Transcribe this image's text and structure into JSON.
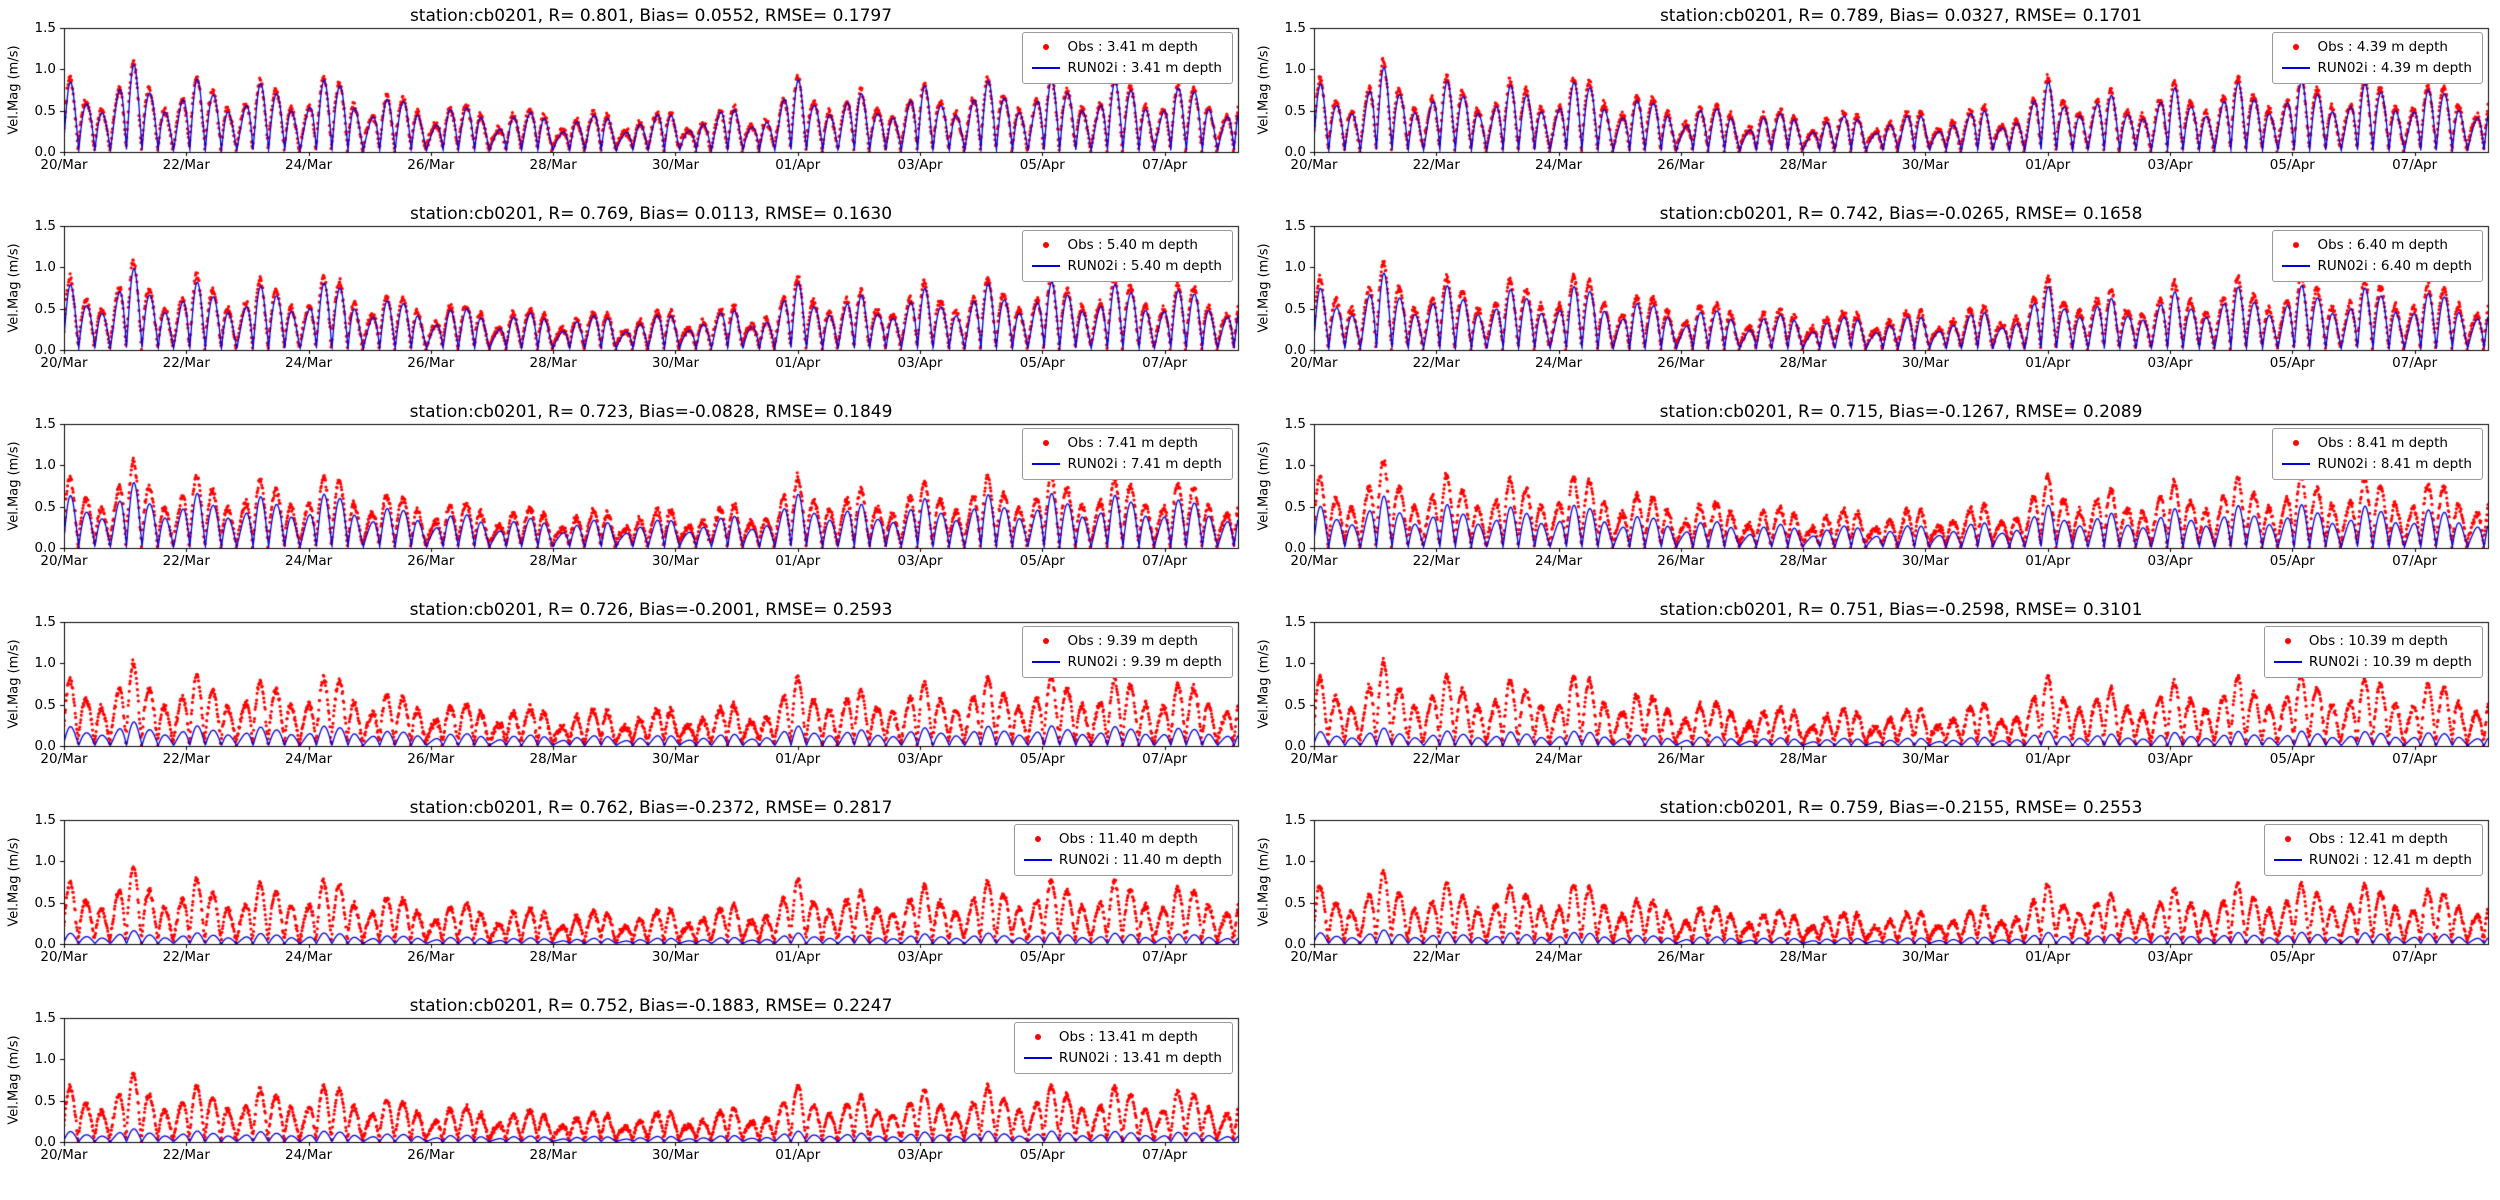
{
  "figure": {
    "station": "cb0201",
    "background": "#ffffff",
    "obs_color": "#ff0000",
    "model_color": "#0000dd",
    "axis_color": "#000000"
  },
  "axes": {
    "ylabel": "Vel.Mag (m/s)",
    "ylim": [
      0.0,
      1.5
    ],
    "yticks": [
      "0.0",
      "0.5",
      "1.0",
      "1.5"
    ],
    "ytick_values": [
      0.0,
      0.5,
      1.0,
      1.5
    ],
    "xticks": [
      "20/Mar",
      "22/Mar",
      "24/Mar",
      "26/Mar",
      "28/Mar",
      "30/Mar",
      "01/Apr",
      "03/Apr",
      "05/Apr",
      "07/Apr"
    ],
    "xtick_interval_days": 2,
    "x_range_days": 19.2,
    "x_range_hours": 460.8,
    "grid": false,
    "legend_position": "upper right"
  },
  "chart_data": [
    {
      "type": "line",
      "title": "station:cb0201, R= 0.801, Bias= 0.0552, RMSE= 0.1797",
      "station": "cb0201",
      "R": 0.801,
      "Bias": 0.0552,
      "RMSE": 0.1797,
      "depth_m": 3.41,
      "legend": [
        "Obs : 3.41 m depth",
        "RUN02i : 3.41 m depth"
      ],
      "series": [
        {
          "name": "Obs : 3.41 m depth",
          "style": "scatter",
          "marker": "dot",
          "color": "#ff0000"
        },
        {
          "name": "RUN02i : 3.41 m depth",
          "style": "line",
          "color": "#0000dd"
        }
      ],
      "signal": "semidiurnal tidal velocity magnitude, peaks 0.3-1.3 m/s, troughs near 0",
      "obs_amp": 1.0,
      "model_ratio": 1.0,
      "seed": 1
    },
    {
      "type": "line",
      "title": "station:cb0201, R= 0.789, Bias= 0.0327, RMSE= 0.1701",
      "station": "cb0201",
      "R": 0.789,
      "Bias": 0.0327,
      "RMSE": 0.1701,
      "depth_m": 4.39,
      "legend": [
        "Obs : 4.39 m depth",
        "RUN02i : 4.39 m depth"
      ],
      "series": [
        {
          "name": "Obs : 4.39 m depth",
          "style": "scatter",
          "marker": "dot",
          "color": "#ff0000"
        },
        {
          "name": "RUN02i : 4.39 m depth",
          "style": "line",
          "color": "#0000dd"
        }
      ],
      "signal": "semidiurnal tidal velocity magnitude, model tracks obs closely",
      "obs_amp": 1.0,
      "model_ratio": 0.97,
      "seed": 2
    },
    {
      "type": "line",
      "title": "station:cb0201, R= 0.769, Bias= 0.0113, RMSE= 0.1630",
      "station": "cb0201",
      "R": 0.769,
      "Bias": 0.0113,
      "RMSE": 0.163,
      "depth_m": 5.4,
      "legend": [
        "Obs : 5.40 m depth",
        "RUN02i : 5.40 m depth"
      ],
      "series": [
        {
          "name": "Obs : 5.40 m depth",
          "style": "scatter",
          "marker": "dot",
          "color": "#ff0000"
        },
        {
          "name": "RUN02i : 5.40 m depth",
          "style": "line",
          "color": "#0000dd"
        }
      ],
      "signal": "semidiurnal tidal velocity magnitude, model tracks obs closely",
      "obs_amp": 0.98,
      "model_ratio": 0.95,
      "seed": 3
    },
    {
      "type": "line",
      "title": "station:cb0201, R= 0.742, Bias=-0.0265, RMSE= 0.1658",
      "station": "cb0201",
      "R": 0.742,
      "Bias": -0.0265,
      "RMSE": 0.1658,
      "depth_m": 6.4,
      "legend": [
        "Obs : 6.40 m depth",
        "RUN02i : 6.40 m depth"
      ],
      "series": [
        {
          "name": "Obs : 6.40 m depth",
          "style": "scatter",
          "marker": "dot",
          "color": "#ff0000"
        },
        {
          "name": "RUN02i : 6.40 m depth",
          "style": "line",
          "color": "#0000dd"
        }
      ],
      "signal": "semidiurnal tidal velocity magnitude, model slightly below obs",
      "obs_amp": 0.98,
      "model_ratio": 0.9,
      "seed": 4
    },
    {
      "type": "line",
      "title": "station:cb0201, R= 0.723, Bias=-0.0828, RMSE= 0.1849",
      "station": "cb0201",
      "R": 0.723,
      "Bias": -0.0828,
      "RMSE": 0.1849,
      "depth_m": 7.41,
      "legend": [
        "Obs : 7.41 m depth",
        "RUN02i : 7.41 m depth"
      ],
      "series": [
        {
          "name": "Obs : 7.41 m depth",
          "style": "scatter",
          "marker": "dot",
          "color": "#ff0000"
        },
        {
          "name": "RUN02i : 7.41 m depth",
          "style": "line",
          "color": "#0000dd"
        }
      ],
      "signal": "semidiurnal tidal velocity magnitude, model underestimates peaks",
      "obs_amp": 0.96,
      "model_ratio": 0.78,
      "seed": 5
    },
    {
      "type": "line",
      "title": "station:cb0201, R= 0.715, Bias=-0.1267, RMSE= 0.2089",
      "station": "cb0201",
      "R": 0.715,
      "Bias": -0.1267,
      "RMSE": 0.2089,
      "depth_m": 8.41,
      "legend": [
        "Obs : 8.41 m depth",
        "RUN02i : 8.41 m depth"
      ],
      "series": [
        {
          "name": "Obs : 8.41 m depth",
          "style": "scatter",
          "marker": "dot",
          "color": "#ff0000"
        },
        {
          "name": "RUN02i : 8.41 m depth",
          "style": "line",
          "color": "#0000dd"
        }
      ],
      "signal": "semidiurnal tidal velocity magnitude, model underestimates peaks",
      "obs_amp": 0.96,
      "model_ratio": 0.62,
      "seed": 6
    },
    {
      "type": "line",
      "title": "station:cb0201, R= 0.726, Bias=-0.2001, RMSE= 0.2593",
      "station": "cb0201",
      "R": 0.726,
      "Bias": -0.2001,
      "RMSE": 0.2593,
      "depth_m": 9.39,
      "legend": [
        "Obs : 9.39 m depth",
        "RUN02i : 9.39 m depth"
      ],
      "series": [
        {
          "name": "Obs : 9.39 m depth",
          "style": "scatter",
          "marker": "dot",
          "color": "#ff0000"
        },
        {
          "name": "RUN02i : 9.39 m depth",
          "style": "line",
          "color": "#0000dd"
        }
      ],
      "signal": "obs peaks ~0.8-1.2 m/s, model strongly damped, peaks ~0.2-0.35 m/s",
      "obs_amp": 0.92,
      "model_ratio": 0.3,
      "seed": 7
    },
    {
      "type": "line",
      "title": "station:cb0201, R= 0.751, Bias=-0.2598, RMSE= 0.3101",
      "station": "cb0201",
      "R": 0.751,
      "Bias": -0.2598,
      "RMSE": 0.3101,
      "depth_m": 10.39,
      "legend": [
        "Obs : 10.39 m depth",
        "RUN02i : 10.39 m depth"
      ],
      "series": [
        {
          "name": "Obs : 10.39 m depth",
          "style": "scatter",
          "marker": "dot",
          "color": "#ff0000"
        },
        {
          "name": "RUN02i : 10.39 m depth",
          "style": "line",
          "color": "#0000dd"
        }
      ],
      "signal": "obs peaks ~0.8-1.1 m/s, model strongly damped, peaks ~0.15-0.3 m/s",
      "obs_amp": 0.93,
      "model_ratio": 0.22,
      "seed": 8
    },
    {
      "type": "line",
      "title": "station:cb0201, R= 0.762, Bias=-0.2372, RMSE= 0.2817",
      "station": "cb0201",
      "R": 0.762,
      "Bias": -0.2372,
      "RMSE": 0.2817,
      "depth_m": 11.4,
      "legend": [
        "Obs : 11.40 m depth",
        "RUN02i : 11.40 m depth"
      ],
      "series": [
        {
          "name": "Obs : 11.40 m depth",
          "style": "scatter",
          "marker": "dot",
          "color": "#ff0000"
        },
        {
          "name": "RUN02i : 11.40 m depth",
          "style": "line",
          "color": "#0000dd"
        }
      ],
      "signal": "obs peaks ~0.6-1.0 m/s, model nearly flat, peaks ~0.1-0.2 m/s",
      "obs_amp": 0.85,
      "model_ratio": 0.18,
      "seed": 9
    },
    {
      "type": "line",
      "title": "station:cb0201, R= 0.759, Bias=-0.2155, RMSE= 0.2553",
      "station": "cb0201",
      "R": 0.759,
      "Bias": -0.2155,
      "RMSE": 0.2553,
      "depth_m": 12.41,
      "legend": [
        "Obs : 12.41 m depth",
        "RUN02i : 12.41 m depth"
      ],
      "series": [
        {
          "name": "Obs : 12.41 m depth",
          "style": "scatter",
          "marker": "dot",
          "color": "#ff0000"
        },
        {
          "name": "RUN02i : 12.41 m depth",
          "style": "line",
          "color": "#0000dd"
        }
      ],
      "signal": "obs peaks ~0.5-1.0 m/s, model nearly flat, peaks ~0.1-0.2 m/s",
      "obs_amp": 0.8,
      "model_ratio": 0.2,
      "seed": 10
    },
    {
      "type": "line",
      "title": "station:cb0201, R= 0.752, Bias=-0.1883, RMSE= 0.2247",
      "station": "cb0201",
      "R": 0.752,
      "Bias": -0.1883,
      "RMSE": 0.2247,
      "depth_m": 13.41,
      "legend": [
        "Obs : 13.41 m depth",
        "RUN02i : 13.41 m depth"
      ],
      "series": [
        {
          "name": "Obs : 13.41 m depth",
          "style": "scatter",
          "marker": "dot",
          "color": "#ff0000"
        },
        {
          "name": "RUN02i : 13.41 m depth",
          "style": "line",
          "color": "#0000dd"
        }
      ],
      "signal": "obs peaks ~0.5-0.9 m/s, model nearly flat, peaks ~0.1-0.2 m/s",
      "obs_amp": 0.75,
      "model_ratio": 0.2,
      "seed": 11
    }
  ]
}
